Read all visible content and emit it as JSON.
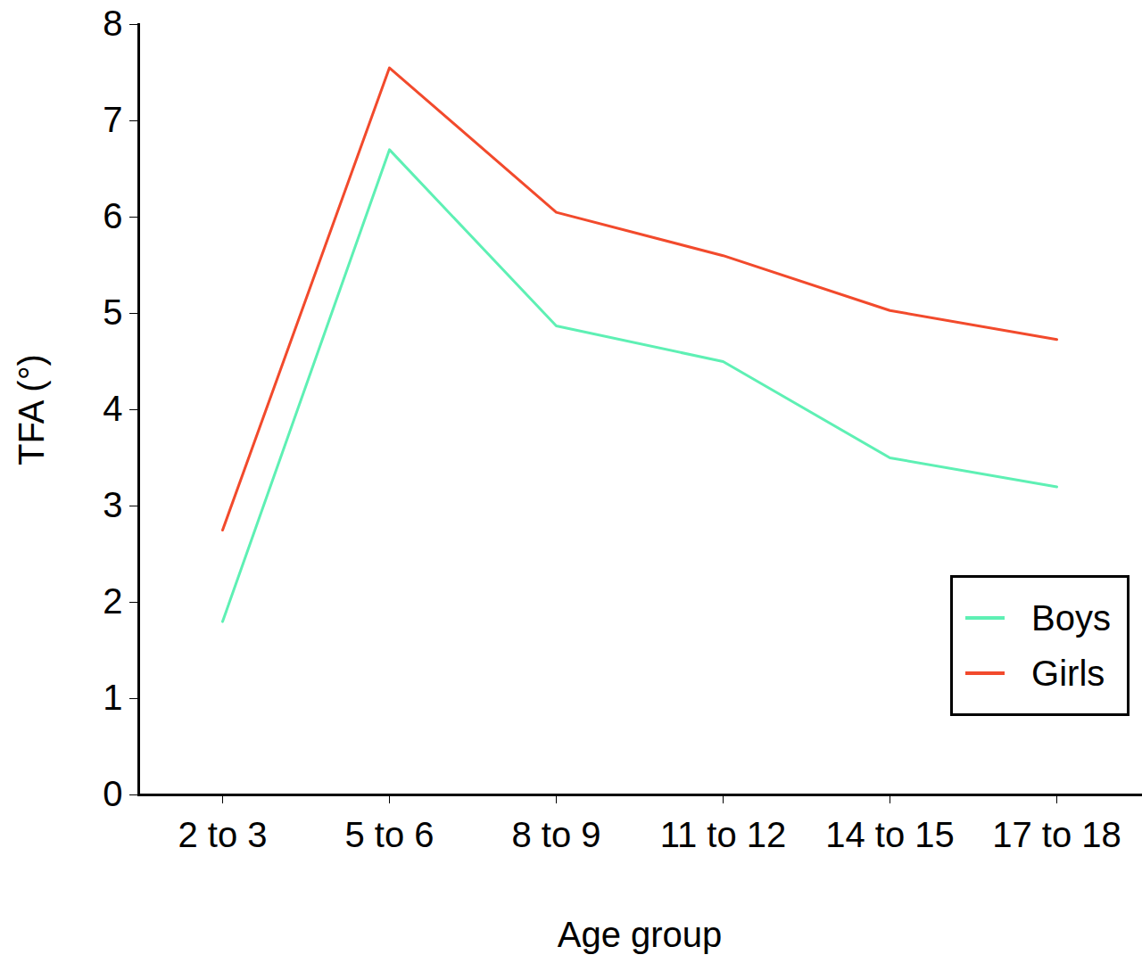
{
  "chart_data": {
    "type": "line",
    "x_label": "Age group",
    "y_label": "TFA (°)",
    "categories": [
      "2 to 3",
      "5 to 6",
      "8 to 9",
      "11 to 12",
      "14 to 15",
      "17 to 18"
    ],
    "series": [
      {
        "name": "Boys",
        "color": "#5ef0b4",
        "values": [
          1.8,
          6.7,
          4.87,
          4.5,
          3.5,
          3.2
        ]
      },
      {
        "name": "Girls",
        "color": "#f24a2c",
        "values": [
          2.75,
          7.55,
          6.05,
          5.6,
          5.03,
          4.73
        ]
      }
    ],
    "ylim": [
      0,
      8
    ],
    "yticks": [
      0,
      1,
      2,
      3,
      4,
      5,
      6,
      7,
      8
    ],
    "grid": false,
    "legend": "lower right"
  }
}
